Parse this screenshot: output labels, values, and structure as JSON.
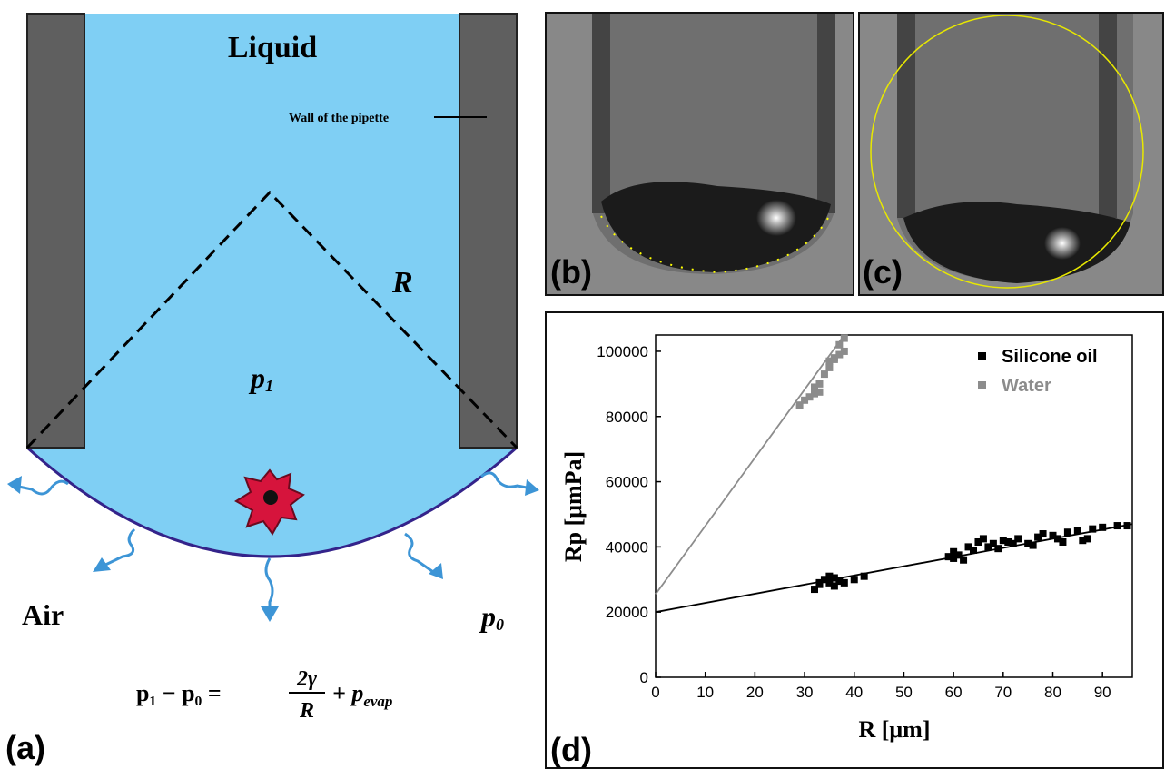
{
  "panel_a": {
    "label": "(a)",
    "liquid": "Liquid",
    "wall": "Wall of the pipette",
    "radius": "R",
    "p_inner": "p",
    "p_inner_sub": "1",
    "p_outer": "p",
    "p_outer_sub": "0",
    "air": "Air",
    "equation": {
      "lhs": "p₁ − p₀ =",
      "numerator": "2γ",
      "denominator": "R",
      "rhs": "+ p",
      "rhs_sub": "evap"
    }
  },
  "panel_b": {
    "label": "(b)"
  },
  "panel_c": {
    "label": "(c)"
  },
  "panel_d": {
    "label": "(d)"
  },
  "chart_data": {
    "type": "scatter",
    "xlabel": "R [μm]",
    "ylabel": "Rp [μmPa]",
    "xlim": [
      0,
      96
    ],
    "ylim": [
      0,
      105000
    ],
    "xticks": [
      0,
      10,
      20,
      30,
      40,
      50,
      60,
      70,
      80,
      90
    ],
    "yticks": [
      0,
      20000,
      40000,
      60000,
      80000,
      100000
    ],
    "legend": "upper right",
    "series": [
      {
        "name": "Silicone oil",
        "color": "#000000",
        "x": [
          32,
          33,
          33,
          34,
          35,
          35,
          36,
          36,
          37,
          38,
          40,
          42,
          59,
          60,
          60,
          61,
          62,
          63,
          64,
          65,
          66,
          67,
          68,
          69,
          70,
          71,
          72,
          73,
          75,
          76,
          77,
          78,
          80,
          81,
          82,
          83,
          85,
          86,
          87,
          88,
          90,
          93,
          95
        ],
        "values": [
          27000,
          28500,
          29000,
          30000,
          31000,
          29000,
          28000,
          30500,
          29500,
          29000,
          30000,
          31000,
          37000,
          36500,
          38500,
          37500,
          36000,
          40000,
          39000,
          41500,
          42500,
          40000,
          41000,
          39500,
          42000,
          41500,
          41000,
          42500,
          41000,
          40500,
          43000,
          44000,
          43500,
          42500,
          41500,
          44500,
          45000,
          42000,
          42500,
          45500,
          46000,
          46500,
          46500
        ],
        "fit": {
          "x": [
            0,
            96
          ],
          "values": [
            20000,
            47000
          ]
        }
      },
      {
        "name": "Water",
        "color": "#8c8c8c",
        "x": [
          29,
          30,
          31,
          32,
          32,
          33,
          33,
          34,
          35,
          35,
          36,
          36,
          37,
          37,
          38,
          38
        ],
        "values": [
          83500,
          85000,
          86000,
          89000,
          87000,
          90000,
          87500,
          93000,
          95000,
          97000,
          98000,
          97500,
          99000,
          102000,
          104000,
          100000
        ],
        "fit": {
          "x": [
            0,
            38
          ],
          "values": [
            25500,
            105000
          ]
        }
      }
    ]
  }
}
